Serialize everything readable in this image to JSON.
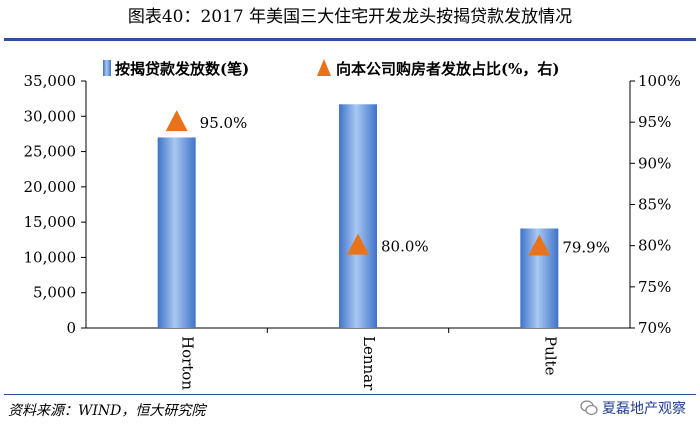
{
  "title": "图表40：2017 年美国三大住宅开发龙头按揭贷款发放情况",
  "source": "资料来源：WIND，恒大研究院",
  "brand": "夏磊地产观察",
  "chart_data": {
    "type": "bar",
    "categories": [
      "Horton",
      "Lennar",
      "Pulte"
    ],
    "series": [
      {
        "name": "按揭贷款发放数(笔)",
        "kind": "bar",
        "axis": "left",
        "color": "#4a7fd0",
        "values": [
          27000,
          31700,
          14100
        ]
      },
      {
        "name": "向本公司购房者发放占比(%，右)",
        "kind": "marker",
        "axis": "right",
        "color": "#e8731a",
        "values": [
          95.0,
          80.0,
          79.9
        ],
        "labels": [
          "95.0%",
          "80.0%",
          "79.9%"
        ]
      }
    ],
    "y_left": {
      "min": 0,
      "max": 35000,
      "ticks": [
        "0",
        "5,000",
        "10,000",
        "15,000",
        "20,000",
        "25,000",
        "30,000",
        "35,000"
      ]
    },
    "y_right": {
      "min": 70,
      "max": 100,
      "ticks": [
        "70%",
        "75%",
        "80%",
        "85%",
        "90%",
        "95%",
        "100%"
      ]
    },
    "legend_position": "top",
    "grid": false
  }
}
